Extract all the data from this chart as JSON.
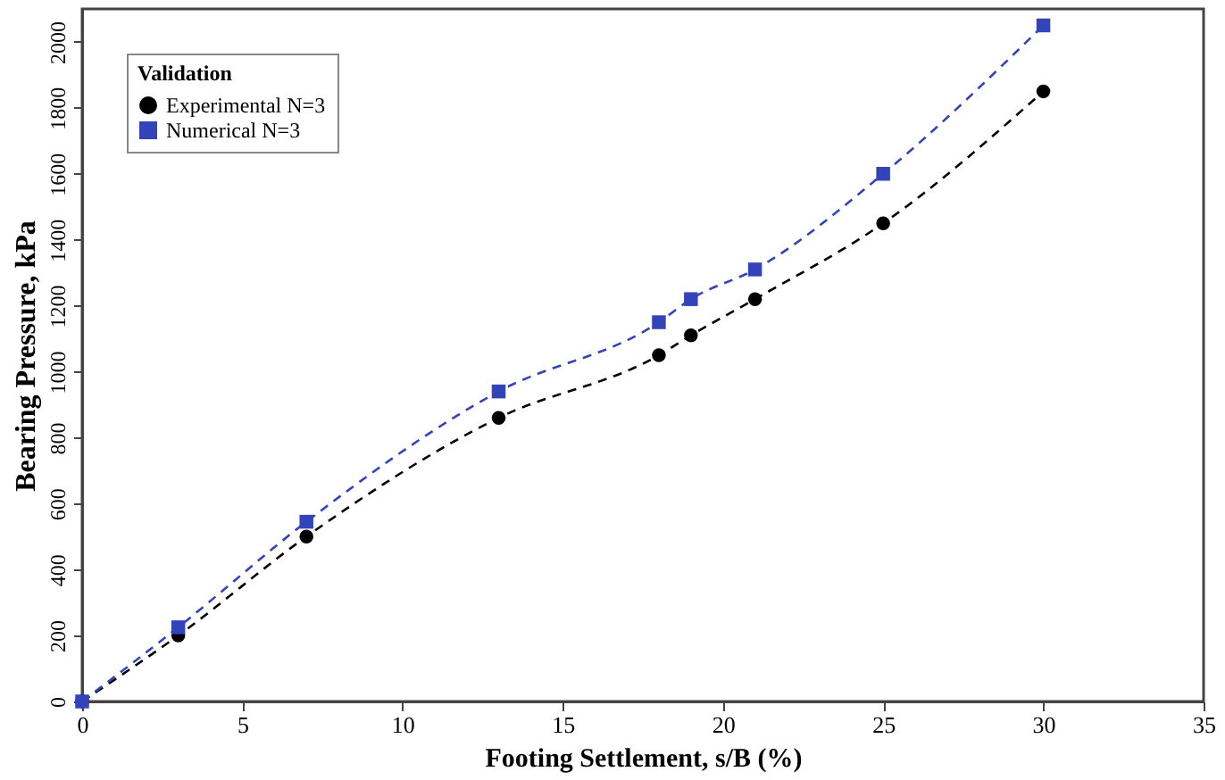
{
  "chart_data": {
    "type": "line",
    "xlabel": "Footing Settlement, s/B (%)",
    "ylabel": "Bearing Pressure, kPa",
    "legend_title": "Validation",
    "legend": "top left",
    "line_style": "dashed",
    "xlim": [
      0,
      35
    ],
    "xticks": [
      0,
      5,
      10,
      15,
      20,
      25,
      30,
      35
    ],
    "ylim": [
      0,
      2100
    ],
    "yticks": [
      0,
      200,
      400,
      600,
      800,
      1000,
      1200,
      1400,
      1600,
      1800,
      2000
    ],
    "grid": false,
    "series": [
      {
        "name": "Experimental N=3",
        "color": "#000000",
        "marker": "circle",
        "x": [
          0,
          3,
          7,
          13,
          18,
          19,
          21,
          25,
          30
        ],
        "values": [
          0,
          200,
          500,
          860,
          1050,
          1110,
          1220,
          1450,
          1850
        ]
      },
      {
        "name": "Numerical N=3",
        "color": "#3344bb",
        "marker": "square",
        "x": [
          0,
          3,
          7,
          13,
          18,
          19,
          21,
          25,
          30
        ],
        "values": [
          0,
          225,
          545,
          940,
          1150,
          1220,
          1310,
          1600,
          2050
        ]
      }
    ]
  }
}
